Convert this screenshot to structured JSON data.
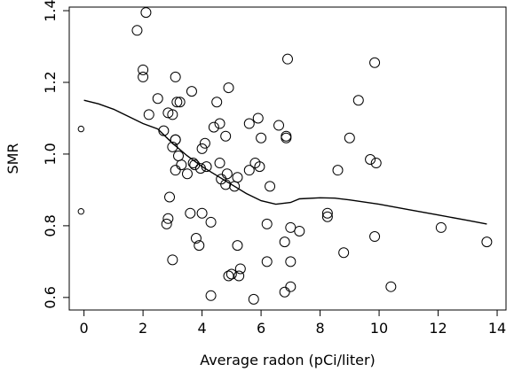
{
  "chart_data": {
    "type": "scatter",
    "xlabel": "Average radon (pCi/liter)",
    "ylabel": "SMR",
    "xlim": [
      -0.5,
      14.3
    ],
    "ylim": [
      0.565,
      1.41
    ],
    "x_ticks": [
      0,
      2,
      4,
      6,
      8,
      10,
      12,
      14
    ],
    "y_ticks": [
      0.6,
      0.8,
      1.0,
      1.2,
      1.4
    ],
    "y_tick_labels": [
      "0.6",
      "0.8",
      "1.0",
      "1.2",
      "1.4"
    ],
    "grid": false,
    "legend": "none",
    "series": [
      {
        "kind": "points",
        "marker": "open-circle",
        "points": [
          [
            -0.1,
            1.07
          ],
          [
            -0.1,
            0.84
          ],
          [
            1.8,
            1.345
          ],
          [
            2.1,
            1.395
          ],
          [
            2.0,
            1.235
          ],
          [
            2.0,
            1.215
          ],
          [
            2.2,
            1.11
          ],
          [
            2.5,
            1.155
          ],
          [
            2.7,
            1.065
          ],
          [
            2.85,
            1.115
          ],
          [
            3.0,
            1.11
          ],
          [
            3.1,
            1.215
          ],
          [
            3.15,
            1.145
          ],
          [
            3.25,
            1.145
          ],
          [
            3.1,
            1.04
          ],
          [
            3.1,
            1.04
          ],
          [
            3.0,
            1.02
          ],
          [
            3.2,
            0.995
          ],
          [
            3.1,
            0.955
          ],
          [
            2.9,
            0.88
          ],
          [
            2.85,
            0.82
          ],
          [
            2.8,
            0.805
          ],
          [
            3.0,
            0.705
          ],
          [
            3.3,
            0.97
          ],
          [
            3.5,
            0.945
          ],
          [
            3.65,
            1.175
          ],
          [
            3.6,
            0.835
          ],
          [
            3.7,
            0.975
          ],
          [
            3.75,
            0.97
          ],
          [
            3.8,
            0.765
          ],
          [
            3.9,
            0.745
          ],
          [
            4.0,
            0.835
          ],
          [
            3.95,
            0.96
          ],
          [
            4.0,
            1.015
          ],
          [
            4.1,
            1.03
          ],
          [
            4.15,
            0.965
          ],
          [
            4.3,
            0.81
          ],
          [
            4.3,
            0.605
          ],
          [
            4.4,
            1.075
          ],
          [
            4.5,
            1.145
          ],
          [
            4.6,
            1.085
          ],
          [
            4.6,
            0.975
          ],
          [
            4.65,
            0.93
          ],
          [
            4.8,
            1.05
          ],
          [
            4.85,
            0.945
          ],
          [
            4.9,
            1.185
          ],
          [
            4.8,
            0.915
          ],
          [
            4.9,
            0.66
          ],
          [
            5.0,
            0.665
          ],
          [
            5.1,
            0.91
          ],
          [
            5.2,
            0.935
          ],
          [
            5.2,
            0.745
          ],
          [
            5.25,
            0.66
          ],
          [
            5.3,
            0.68
          ],
          [
            5.6,
            0.955
          ],
          [
            5.6,
            1.085
          ],
          [
            5.75,
            0.595
          ],
          [
            5.8,
            0.975
          ],
          [
            5.9,
            1.1
          ],
          [
            5.95,
            0.965
          ],
          [
            6.0,
            1.045
          ],
          [
            6.2,
            0.805
          ],
          [
            6.2,
            0.7
          ],
          [
            6.3,
            0.91
          ],
          [
            6.6,
            1.08
          ],
          [
            6.85,
            1.05
          ],
          [
            6.85,
            1.045
          ],
          [
            6.8,
            0.755
          ],
          [
            6.8,
            0.615
          ],
          [
            6.9,
            1.265
          ],
          [
            7.0,
            0.795
          ],
          [
            7.0,
            0.63
          ],
          [
            7.0,
            0.7
          ],
          [
            7.3,
            0.785
          ],
          [
            8.25,
            0.835
          ],
          [
            8.25,
            0.825
          ],
          [
            8.6,
            0.955
          ],
          [
            8.8,
            0.725
          ],
          [
            9.0,
            1.045
          ],
          [
            9.3,
            1.15
          ],
          [
            9.7,
            0.985
          ],
          [
            9.9,
            0.975
          ],
          [
            9.85,
            1.255
          ],
          [
            9.85,
            0.77
          ],
          [
            10.4,
            0.63
          ],
          [
            12.1,
            0.795
          ],
          [
            13.65,
            0.755
          ]
        ]
      },
      {
        "kind": "smooth-line",
        "points": [
          [
            0.0,
            1.15
          ],
          [
            0.5,
            1.14
          ],
          [
            1.0,
            1.125
          ],
          [
            1.5,
            1.105
          ],
          [
            2.0,
            1.085
          ],
          [
            2.5,
            1.07
          ],
          [
            3.0,
            1.03
          ],
          [
            3.5,
            0.995
          ],
          [
            4.0,
            0.965
          ],
          [
            4.5,
            0.94
          ],
          [
            5.0,
            0.915
          ],
          [
            5.5,
            0.89
          ],
          [
            6.0,
            0.87
          ],
          [
            6.5,
            0.86
          ],
          [
            7.0,
            0.865
          ],
          [
            7.3,
            0.875
          ],
          [
            8.0,
            0.878
          ],
          [
            8.5,
            0.877
          ],
          [
            9.0,
            0.872
          ],
          [
            10.0,
            0.86
          ],
          [
            11.0,
            0.845
          ],
          [
            12.0,
            0.83
          ],
          [
            13.0,
            0.815
          ],
          [
            13.65,
            0.805
          ]
        ]
      }
    ]
  }
}
